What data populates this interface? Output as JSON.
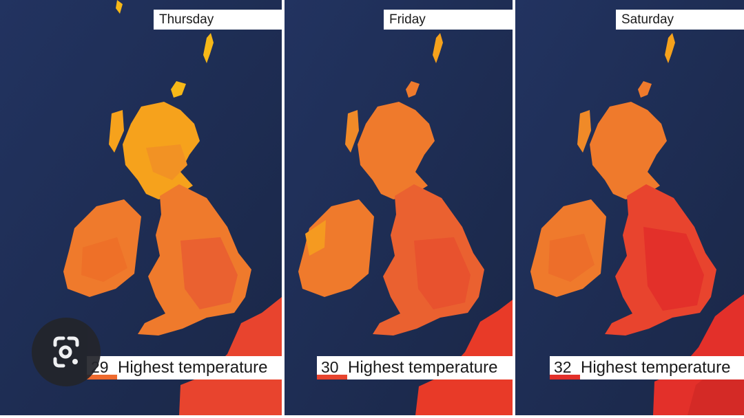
{
  "panels": [
    {
      "day": "Thursday",
      "temperature": "29",
      "label": "Highest temperature"
    },
    {
      "day": "Friday",
      "temperature": "30",
      "label": "Highest temperature"
    },
    {
      "day": "Saturday",
      "temperature": "32",
      "label": "Highest temperature"
    }
  ],
  "colors": {
    "sea": "#1c2b4f",
    "cool": "#f6a21c",
    "warm": "#ef7a2c",
    "hot": "#e8442e",
    "hottest": "#e3302a"
  },
  "icons": {
    "lens": "google-lens-icon"
  }
}
